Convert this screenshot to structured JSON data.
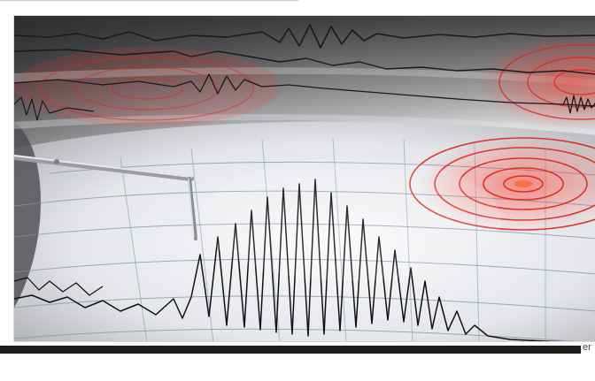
{
  "photo": {
    "subject": "seismograph-recording",
    "accent_color": "#e0241b",
    "paper_color": "#eef0f2",
    "grid_color": "#7f93b0",
    "trace_color": "#111111"
  },
  "footer": {
    "corner_text": "er"
  }
}
